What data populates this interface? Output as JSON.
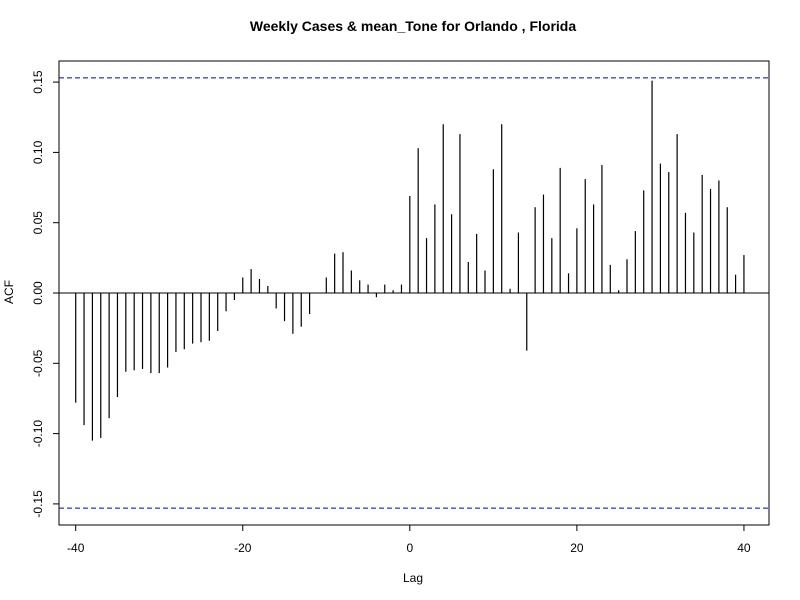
{
  "chart_data": {
    "type": "bar",
    "title": "Weekly Cases & mean_Tone for Orlando , Florida",
    "xlabel": "Lag",
    "ylabel": "ACF",
    "xlim": [
      -42,
      43
    ],
    "ylim": [
      -0.165,
      0.165
    ],
    "x_ticks": [
      -40,
      -20,
      0,
      20,
      40
    ],
    "x_tick_labels": [
      "-40",
      "-20",
      "0",
      "20",
      "40"
    ],
    "y_ticks": [
      -0.15,
      -0.1,
      -0.05,
      0.0,
      0.05,
      0.1,
      0.15
    ],
    "y_tick_labels": [
      "-0.15",
      "-0.10",
      "-0.05",
      "0.00",
      "0.05",
      "0.10",
      "0.15"
    ],
    "confidence_bounds": [
      0.153,
      -0.153
    ],
    "bound_color": "#0000cc",
    "bar_color": "#000000",
    "grid": false,
    "lags": [
      -40,
      -39,
      -38,
      -37,
      -36,
      -35,
      -34,
      -33,
      -32,
      -31,
      -30,
      -29,
      -28,
      -27,
      -26,
      -25,
      -24,
      -23,
      -22,
      -21,
      -20,
      -19,
      -18,
      -17,
      -16,
      -15,
      -14,
      -13,
      -12,
      -11,
      -10,
      -9,
      -8,
      -7,
      -6,
      -5,
      -4,
      -3,
      -2,
      -1,
      0,
      1,
      2,
      3,
      4,
      5,
      6,
      7,
      8,
      9,
      10,
      11,
      12,
      13,
      14,
      15,
      16,
      17,
      18,
      19,
      20,
      21,
      22,
      23,
      24,
      25,
      26,
      27,
      28,
      29,
      30,
      31,
      32,
      33,
      34,
      35,
      36,
      37,
      38,
      39,
      40
    ],
    "values": [
      -0.078,
      -0.094,
      -0.105,
      -0.103,
      -0.089,
      -0.074,
      -0.056,
      -0.055,
      -0.054,
      -0.057,
      -0.057,
      -0.053,
      -0.042,
      -0.04,
      -0.036,
      -0.035,
      -0.034,
      -0.027,
      -0.013,
      -0.005,
      0.011,
      0.017,
      0.01,
      0.005,
      -0.011,
      -0.02,
      -0.029,
      -0.024,
      -0.015,
      0.0,
      0.011,
      0.028,
      0.029,
      0.016,
      0.009,
      0.006,
      -0.003,
      0.006,
      0.002,
      0.006,
      0.069,
      0.103,
      0.039,
      0.063,
      0.12,
      0.056,
      0.113,
      0.022,
      0.042,
      0.016,
      0.088,
      0.12,
      0.003,
      0.043,
      -0.041,
      0.061,
      0.07,
      0.039,
      0.089,
      0.014,
      0.046,
      0.081,
      0.063,
      0.091,
      0.02,
      0.002,
      0.024,
      0.044,
      0.073,
      0.151,
      0.092,
      0.086,
      0.113,
      0.057,
      0.043,
      0.084,
      0.074,
      0.08,
      0.061,
      0.013,
      0.027
    ]
  }
}
